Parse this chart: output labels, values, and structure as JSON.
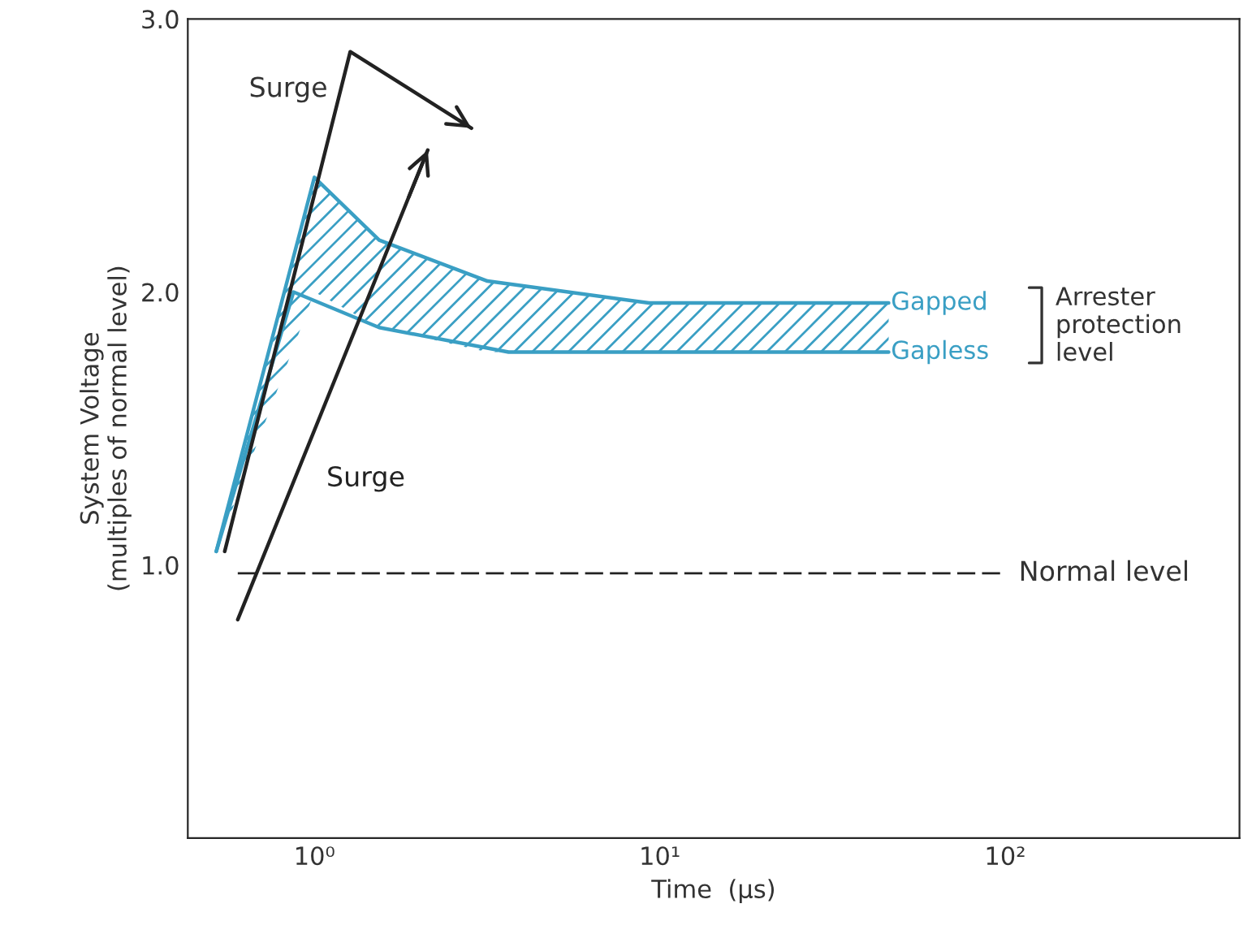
{
  "chart_data": {
    "type": "line",
    "xlabel": "Time  (μs)",
    "ylabel": "System Voltage\n(multiples of normal level)",
    "log": "x",
    "xlim": [
      0.43,
      477
    ],
    "ylim": [
      0,
      3.0
    ],
    "xticks": [
      {
        "value": 1,
        "label": "10⁰"
      },
      {
        "value": 10,
        "label": "10¹"
      },
      {
        "value": 100,
        "label": "10²"
      }
    ],
    "yticks": [
      {
        "value": 1.0,
        "label": "1.0"
      },
      {
        "value": 2.0,
        "label": "2.0"
      },
      {
        "value": 3.0,
        "label": "3.0"
      }
    ],
    "grid": false,
    "marker": "none",
    "series": [
      {
        "name": "Gapped",
        "color": "#3a9fc4",
        "x": [
          0.52,
          1.0,
          1.54,
          3.17,
          9.3,
          46
        ],
        "values": [
          1.05,
          2.42,
          2.19,
          2.04,
          1.96,
          1.96
        ],
        "lower": [
          1.05,
          2.0,
          1.87,
          1.78,
          1.78,
          1.78
        ],
        "upper": [
          1.05,
          2.42,
          2.19,
          2.04,
          1.96,
          1.96
        ]
      },
      {
        "name": "Gapless",
        "color": "#3a9fc4",
        "x": [
          0.52,
          0.87,
          1.54,
          3.65,
          46
        ],
        "values": [
          1.05,
          2.0,
          1.87,
          1.78,
          1.78
        ]
      },
      {
        "name": "Surge",
        "color": "#222222",
        "x": [
          0.55,
          1.27,
          2.85
        ],
        "values": [
          1.05,
          2.88,
          2.6
        ]
      },
      {
        "name": "Surge",
        "color": "#222222",
        "x": [
          0.6,
          2.13
        ],
        "values": [
          0.8,
          2.52
        ]
      }
    ],
    "ref_lines": [
      {
        "axis": "y",
        "value": 0.97,
        "label": "Normal level",
        "color": "#222222",
        "line_style": "dashed"
      }
    ],
    "annotations": [
      "Arrester protection level"
    ]
  }
}
